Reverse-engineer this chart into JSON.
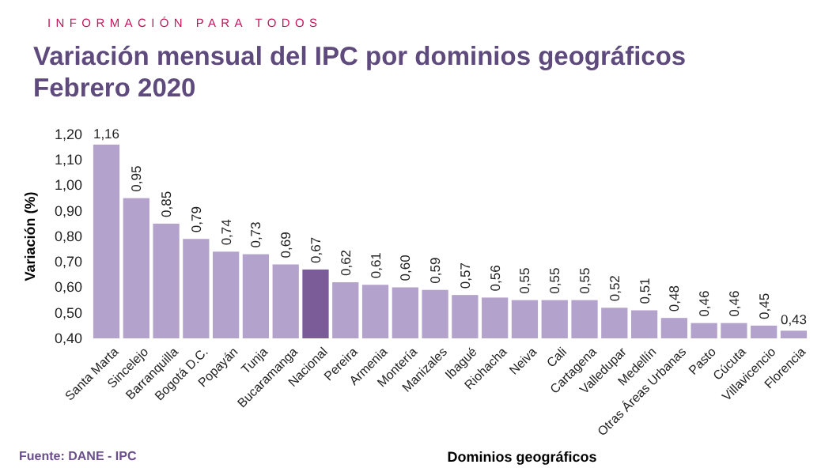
{
  "chart_data": {
    "type": "bar",
    "title": "Variación mensual del IPC por dominios geográficos",
    "subtitle": "Febrero 2020",
    "xlabel": "Dominios geográficos",
    "ylabel": "Variación (%)",
    "annotations": [
      "INFORMACIÓN PARA TODOS",
      "Fuente: DANE - IPC"
    ],
    "categories": [
      "Santa Marta",
      "Sincelejo",
      "Barranquilla",
      "Bogotá D.C.",
      "Popayán",
      "Tunja",
      "Bucaramanga",
      "Nacional",
      "Pereira",
      "Armenia",
      "Montería",
      "Manizales",
      "Ibagué",
      "Riohacha",
      "Neiva",
      "Cali",
      "Cartagena",
      "Valledupar",
      "Medellín",
      "Otras Áreas Urbanas",
      "Pasto",
      "Cúcuta",
      "Villavicencio",
      "Florencia"
    ],
    "values": [
      1.16,
      0.95,
      0.85,
      0.79,
      0.74,
      0.73,
      0.69,
      0.67,
      0.62,
      0.61,
      0.6,
      0.59,
      0.57,
      0.56,
      0.55,
      0.55,
      0.55,
      0.52,
      0.51,
      0.48,
      0.46,
      0.46,
      0.45,
      0.43
    ],
    "colors": [
      "#b3a2cc",
      "#b3a2cc",
      "#b3a2cc",
      "#b3a2cc",
      "#b3a2cc",
      "#b3a2cc",
      "#b3a2cc",
      "#7b5c98",
      "#b3a2cc",
      "#b3a2cc",
      "#b3a2cc",
      "#b3a2cc",
      "#b3a2cc",
      "#b3a2cc",
      "#b3a2cc",
      "#b3a2cc",
      "#b3a2cc",
      "#b3a2cc",
      "#b3a2cc",
      "#b3a2cc",
      "#b3a2cc",
      "#b3a2cc",
      "#b3a2cc",
      "#b3a2cc"
    ],
    "value_labels": [
      "1,16",
      "0,95",
      "0,85",
      "0,79",
      "0,74",
      "0,73",
      "0,69",
      "0,67",
      "0,62",
      "0,61",
      "0,60",
      "0,59",
      "0,57",
      "0,56",
      "0,55",
      "0,55",
      "0,55",
      "0,52",
      "0,51",
      "0,48",
      "0,46",
      "0,46",
      "0,45",
      "0,43"
    ],
    "ylim": [
      0.4,
      1.2
    ],
    "yticks": [
      {
        "value": 0.4,
        "label": "0,40"
      },
      {
        "value": 0.5,
        "label": "0,50"
      },
      {
        "value": 0.6,
        "label": "0,60"
      },
      {
        "value": 0.7,
        "label": "0,70"
      },
      {
        "value": 0.8,
        "label": "0,80"
      },
      {
        "value": 0.9,
        "label": "0,90"
      },
      {
        "value": 1.0,
        "label": "1,00"
      },
      {
        "value": 1.1,
        "label": "1,10"
      },
      {
        "value": 1.2,
        "label": "1,20"
      }
    ],
    "grid": false
  }
}
